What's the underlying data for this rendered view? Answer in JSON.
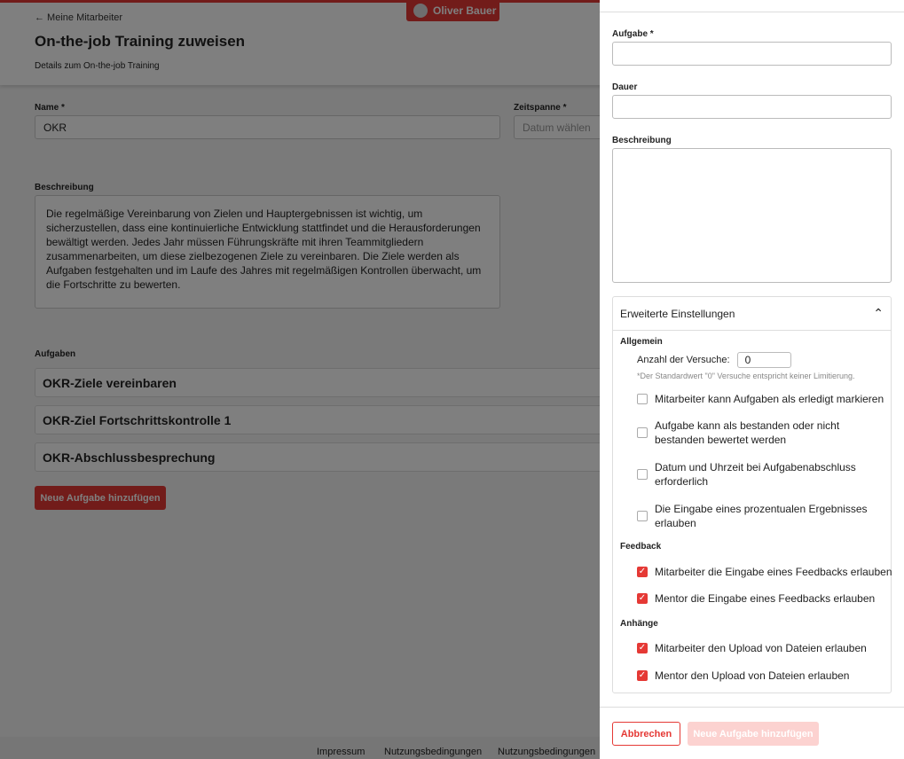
{
  "header": {
    "back": "← Meine Mitarbeiter",
    "title": "On-the-job Training zuweisen",
    "subtitle": "Details zum On-the-job Training",
    "user": "Oliver Bauer"
  },
  "form": {
    "name_label": "Name *",
    "name_value": "OKR",
    "period_label": "Zeitspanne *",
    "period_placeholder": "Datum wählen",
    "desc_label": "Beschreibung",
    "desc_value": "Die regelmäßige Vereinbarung von Zielen und Hauptergebnissen ist wichtig, um sicherzustellen, dass eine kontinuierliche Entwicklung stattfindet und die Herausforderungen bewältigt werden. Jedes Jahr müssen Führungskräfte mit ihren Teammitgliedern zusammenarbeiten, um diese zielbezogenen Ziele zu vereinbaren. Die Ziele werden als Aufgaben festgehalten und im Laufe des Jahres mit regelmäßigen Kontrollen überwacht, um die Fortschritte zu bewerten."
  },
  "tasks": {
    "label": "Aufgaben",
    "items": [
      "OKR-Ziele vereinbaren",
      "OKR-Ziel Fortschrittskontrolle 1",
      "OKR-Abschlussbesprechung"
    ],
    "add": "Neue Aufgabe hinzufügen"
  },
  "footer": [
    "Impressum",
    "Nutzungsbedingungen",
    "Nutzungsbedingungen"
  ],
  "panel": {
    "task_label": "Aufgabe *",
    "task_value": "",
    "duration_label": "Dauer",
    "duration_value": "",
    "desc_label": "Beschreibung",
    "desc_value": "",
    "advanced": {
      "title": "Erweiterte Einstellungen",
      "general": "Allgemein",
      "attempts_label": "Anzahl der Versuche:",
      "attempts_value": "0",
      "attempts_hint": "*Der Standardwert \"0\" Versuche entspricht keiner Limitierung.",
      "general_options": [
        {
          "label": "Mitarbeiter kann Aufgaben als erledigt markieren",
          "checked": false
        },
        {
          "label": "Aufgabe kann als bestanden oder nicht bestanden bewertet werden",
          "checked": false
        },
        {
          "label": "Datum und Uhrzeit bei Aufgabenabschluss erforderlich",
          "checked": false
        },
        {
          "label": "Die Eingabe eines prozentualen Ergebnisses erlauben",
          "checked": false
        }
      ],
      "feedback": "Feedback",
      "feedback_options": [
        {
          "label": "Mitarbeiter die Eingabe eines Feedbacks erlauben",
          "checked": true
        },
        {
          "label": "Mentor die Eingabe eines Feedbacks erlauben",
          "checked": true
        }
      ],
      "attachments": "Anhänge",
      "attachment_options": [
        {
          "label": "Mitarbeiter den Upload von Dateien erlauben",
          "checked": true
        },
        {
          "label": "Mentor den Upload von Dateien erlauben",
          "checked": true
        }
      ]
    },
    "cancel": "Abbrechen",
    "submit": "Neue Aufgabe hinzufügen"
  },
  "colors": {
    "accent": "#e53935",
    "overlay": "rgba(0,0,0,0.5)"
  }
}
